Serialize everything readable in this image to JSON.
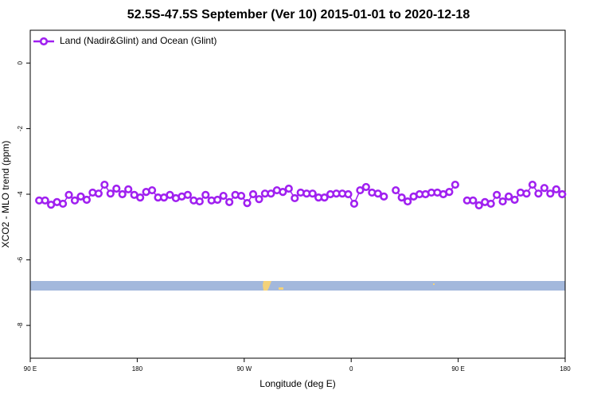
{
  "chart_data": {
    "type": "line",
    "title": "52.5S-47.5S September (Ver 10)   2015-01-01 to 2020-12-18",
    "x_label": "Longitude (deg E)",
    "y_label": "XCO2 - MLO trend (ppm)",
    "xlim": [
      90,
      540
    ],
    "ylim": [
      -9,
      1
    ],
    "xticks": [
      {
        "value": 90,
        "label": "90 E"
      },
      180,
      {
        "value": 270,
        "label": "90 W"
      },
      {
        "value": 360,
        "label": "0"
      },
      {
        "value": 450,
        "label": "90 E"
      },
      {
        "value": 540,
        "label": "180"
      }
    ],
    "yticks": [
      0,
      -2,
      -4,
      -6,
      -8
    ],
    "legend": "top-left",
    "x": [
      97.5,
      102.5,
      107.5,
      112.5,
      117.5,
      122.5,
      127.5,
      132.5,
      137.5,
      142.5,
      147.5,
      152.5,
      157.5,
      162.5,
      167.5,
      172.5,
      177.5,
      182.5,
      187.5,
      192.5,
      197.5,
      202.5,
      207.5,
      212.5,
      217.5,
      222.5,
      227.5,
      232.5,
      237.5,
      242.5,
      247.5,
      252.5,
      257.5,
      262.5,
      267.5,
      272.5,
      277.5,
      282.5,
      287.5,
      292.5,
      297.5,
      302.5,
      307.5,
      312.5,
      317.5,
      322.5,
      327.5,
      332.5,
      337.5,
      342.5,
      347.5,
      352.5,
      357.5,
      362.5,
      367.5,
      372.5,
      377.5,
      382.5,
      387.5,
      392.5,
      397.5,
      402.5,
      407.5,
      412.5,
      417.5,
      422.5,
      427.5,
      432.5,
      437.5,
      442.5,
      447.5,
      452.5,
      457.5,
      462.5,
      467.5,
      472.5,
      477.5,
      482.5,
      487.5,
      492.5,
      497.5,
      502.5,
      507.5,
      512.5,
      517.5,
      522.5,
      527.5,
      532.5,
      537.5
    ],
    "series": [
      {
        "name": "Land (Nadir&Glint) and Ocean (Glint)",
        "color": "#a020f0",
        "values": [
          -4.19,
          -4.19,
          -4.32,
          -4.24,
          -4.29,
          -4.02,
          -4.19,
          -4.07,
          -4.17,
          -3.95,
          -3.98,
          -3.71,
          -3.98,
          -3.83,
          -4.0,
          -3.85,
          -4.02,
          -4.1,
          -3.93,
          -3.88,
          -4.1,
          -4.1,
          -4.02,
          -4.12,
          -4.07,
          -4.02,
          -4.19,
          -4.22,
          -4.02,
          -4.19,
          -4.17,
          -4.05,
          -4.24,
          -4.02,
          -4.05,
          -4.27,
          -4.0,
          -4.15,
          -3.98,
          -3.98,
          -3.88,
          -3.93,
          -3.83,
          -4.12,
          -3.95,
          -3.98,
          -3.98,
          -4.1,
          -4.1,
          -4.0,
          -3.98,
          -3.98,
          -4.0,
          -4.29,
          -3.88,
          -3.78,
          -3.95,
          -3.98,
          -4.07,
          null,
          -3.88,
          -4.1,
          -4.22,
          -4.07,
          -4.0,
          -4.0,
          -3.95,
          -3.95,
          -4.0,
          -3.93,
          -3.71,
          null,
          -4.19,
          -4.19,
          -4.34,
          -4.24,
          -4.29,
          -4.02,
          -4.22,
          -4.07,
          -4.17,
          -3.95,
          -3.98,
          -3.71,
          -3.98,
          -3.81,
          -3.98,
          -3.85,
          -4.0
        ]
      }
    ]
  }
}
